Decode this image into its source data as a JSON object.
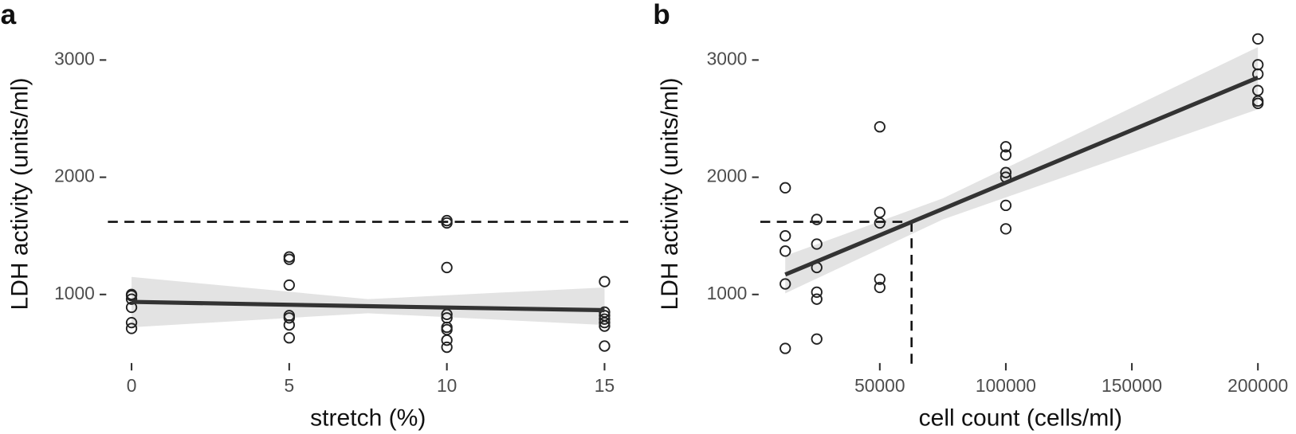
{
  "chart_data": [
    {
      "type": "scatter",
      "panel": "a",
      "x_label": "stretch (%)",
      "y_label": "LDH activity (units/ml)",
      "xlim": [
        -0.75,
        15.75
      ],
      "ylim": [
        380,
        3160
      ],
      "xticks": [
        0,
        5,
        10,
        15
      ],
      "yticks": [
        1000,
        2000,
        3000
      ],
      "color": "#222222",
      "x": [
        0,
        0,
        0,
        0,
        0,
        0,
        5,
        5,
        5,
        5,
        5,
        5,
        5,
        10,
        10,
        10,
        10,
        10,
        10,
        10,
        10,
        10,
        15,
        15,
        15,
        15,
        15,
        15,
        15
      ],
      "values": [
        1000,
        990,
        960,
        890,
        760,
        710,
        1320,
        1300,
        1080,
        820,
        800,
        740,
        630,
        1630,
        1610,
        1230,
        830,
        800,
        720,
        700,
        610,
        550,
        1110,
        850,
        820,
        790,
        760,
        730,
        560
      ],
      "fit": {
        "x": [
          0,
          7.5,
          15
        ],
        "values": [
          937,
          900,
          866
        ],
        "lower": [
          720,
          840,
          740
        ],
        "upper": [
          1150,
          960,
          1060
        ]
      },
      "hline": 1620
    },
    {
      "type": "scatter",
      "panel": "b",
      "x_label": "cell count (cells/ml)",
      "y_label": "LDH activity (units/ml)",
      "xlim": [
        2600,
        209000
      ],
      "ylim": [
        380,
        3160
      ],
      "xticks": [
        50000,
        100000,
        150000,
        200000
      ],
      "yticks": [
        1000,
        2000,
        3000
      ],
      "color": "#222222",
      "x": [
        12500,
        12500,
        12500,
        12500,
        12500,
        25000,
        25000,
        25000,
        25000,
        25000,
        25000,
        50000,
        50000,
        50000,
        50000,
        50000,
        100000,
        100000,
        100000,
        100000,
        100000,
        100000,
        200000,
        200000,
        200000,
        200000,
        200000,
        200000
      ],
      "values": [
        1910,
        1500,
        1370,
        1090,
        540,
        1640,
        1430,
        1230,
        1020,
        960,
        620,
        2430,
        1700,
        1610,
        1130,
        1060,
        2260,
        2190,
        2040,
        2000,
        1760,
        1560,
        3180,
        2960,
        2880,
        2740,
        2650,
        2630
      ],
      "fit": {
        "x": [
          12500,
          75000,
          200000
        ],
        "values": [
          1170,
          1730,
          2850
        ],
        "lower": [
          1010,
          1640,
          2580
        ],
        "upper": [
          1330,
          1820,
          3110
        ]
      },
      "hline": 1620,
      "vline": 62600
    }
  ]
}
